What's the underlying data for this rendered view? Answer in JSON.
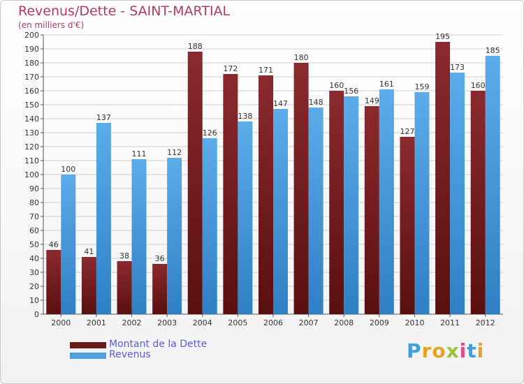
{
  "header": {
    "title": "Revenus/Dette - SAINT-MARTIAL",
    "subtitle": "(en milliers d'€)"
  },
  "colors": {
    "dette": "#6b1a1a",
    "revenus": "#4f9fdf",
    "title": "#b0386a",
    "legend_text": "#5b5be6"
  },
  "legend": {
    "items": [
      {
        "label": "Montant de la Dette",
        "color": "#6b1a1a"
      },
      {
        "label": "Revenus",
        "color": "#4f9fdf"
      }
    ]
  },
  "brand": {
    "letters": [
      "P",
      "r",
      "o",
      "x",
      "i",
      "t",
      "i"
    ],
    "colors": [
      "#3aa0e0",
      "#e8a21f",
      "#e8a21f",
      "#9bc43a",
      "#e14a8b",
      "#3aa0e0",
      "#e8a21f"
    ]
  },
  "chart_data": {
    "type": "bar",
    "title": "Revenus/Dette - SAINT-MARTIAL",
    "subtitle": "(en milliers d'€)",
    "xlabel": "",
    "ylabel": "",
    "categories": [
      "2000",
      "2001",
      "2002",
      "2003",
      "2004",
      "2005",
      "2006",
      "2007",
      "2008",
      "2009",
      "2010",
      "2011",
      "2012"
    ],
    "series": [
      {
        "name": "Montant de la Dette",
        "values": [
          46,
          41,
          38,
          36,
          188,
          172,
          171,
          180,
          160,
          149,
          127,
          195,
          160
        ]
      },
      {
        "name": "Revenus",
        "values": [
          100,
          137,
          111,
          112,
          126,
          138,
          147,
          148,
          156,
          161,
          159,
          173,
          185
        ]
      }
    ],
    "ylim": [
      0,
      200
    ],
    "yticks": [
      0,
      10,
      20,
      30,
      40,
      50,
      60,
      70,
      80,
      90,
      100,
      110,
      120,
      130,
      140,
      150,
      160,
      170,
      180,
      190,
      200
    ],
    "grid": true,
    "legend_position": "bottom-left"
  }
}
